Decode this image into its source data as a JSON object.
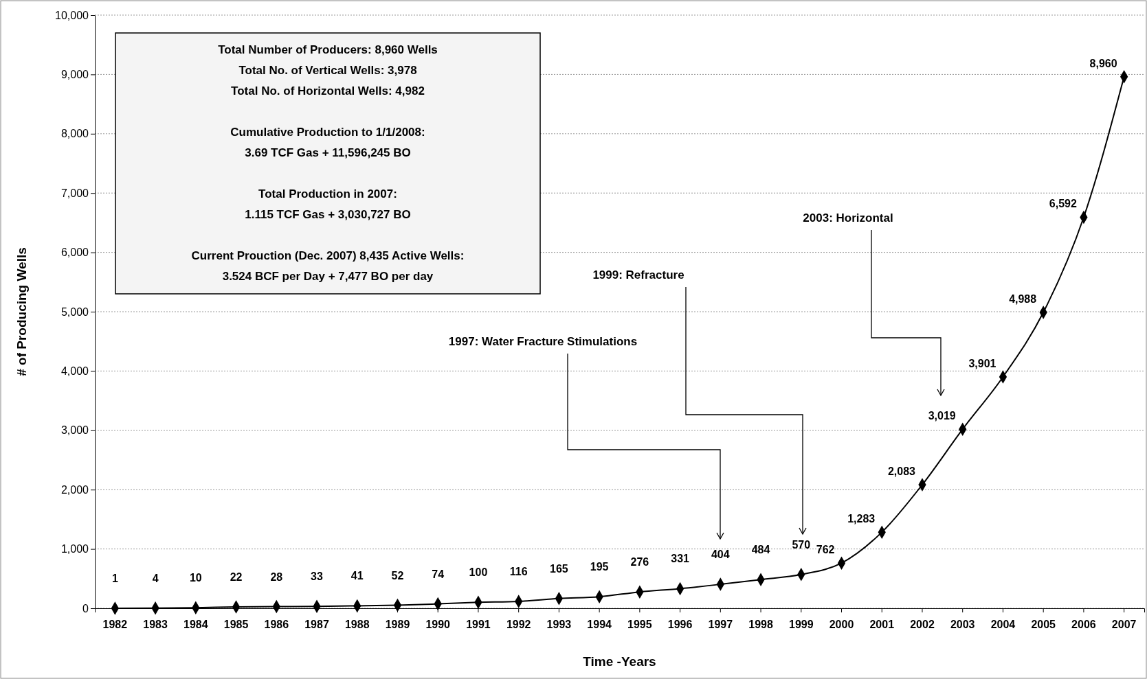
{
  "chart_data": {
    "type": "line",
    "xlabel": "Time -Years",
    "ylabel": "# of Producing Wells",
    "categories": [
      "1982",
      "1983",
      "1984",
      "1985",
      "1986",
      "1987",
      "1988",
      "1989",
      "1990",
      "1991",
      "1992",
      "1993",
      "1994",
      "1995",
      "1996",
      "1997",
      "1998",
      "1999",
      "2000",
      "2001",
      "2002",
      "2003",
      "2004",
      "2005",
      "2006",
      "2007"
    ],
    "series": [
      {
        "color": "#000000",
        "values": [
          1,
          4,
          10,
          22,
          28,
          33,
          41,
          52,
          74,
          100,
          116,
          165,
          195,
          276,
          331,
          404,
          484,
          570,
          762,
          1283,
          2083,
          3019,
          3901,
          4988,
          6592,
          8960
        ]
      }
    ],
    "ylim": [
      0,
      10000
    ],
    "yticks": [
      {
        "value": 0,
        "label": "0"
      },
      {
        "value": 1000,
        "label": "1,000"
      },
      {
        "value": 2000,
        "label": "2,000"
      },
      {
        "value": 3000,
        "label": "3,000"
      },
      {
        "value": 4000,
        "label": "4,000"
      },
      {
        "value": 5000,
        "label": "5,000"
      },
      {
        "value": 6000,
        "label": "6,000"
      },
      {
        "value": 7000,
        "label": "7,000"
      },
      {
        "value": 8000,
        "label": "8,000"
      },
      {
        "value": 9000,
        "label": "9,000"
      },
      {
        "value": 10000,
        "label": "10,000"
      }
    ],
    "grid": "y",
    "marker": "diamond",
    "line_style": "solid",
    "value_labels": [
      "1",
      "4",
      "10",
      "22",
      "28",
      "33",
      "41",
      "52",
      "74",
      "100",
      "116",
      "165",
      "195",
      "276",
      "331",
      "404",
      "484",
      "570",
      "762",
      "1,283",
      "2,083",
      "3,019",
      "3,901",
      "4,988",
      "6,592",
      "8,960"
    ],
    "annotations": [
      "Total Number of Producers: 8,960 Wells\nTotal No. of Vertical Wells: 3,978\nTotal No. of Horizontal Wells: 4,982",
      "Cumulative Production to 1/1/2008:\n3.69 TCF Gas + 11,596,245 BO",
      "Total Production in 2007:\n1.115 TCF Gas + 3,030,727 BO",
      "Current Prouction (Dec. 2007) 8,435 Active Wells:\n3.524 BCF per Day + 7,477 BO per day",
      "1997: Water Fracture Stimulations",
      "1999: Refracture",
      "2003: Horizontal"
    ]
  }
}
